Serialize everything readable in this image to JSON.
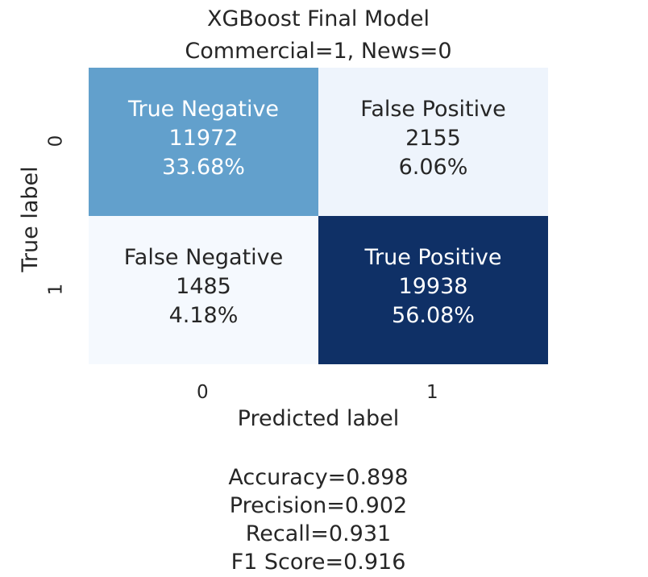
{
  "chart_data": {
    "type": "heatmap",
    "title": "XGBoost Final Model",
    "subtitle": "Commercial=1, News=0",
    "xlabel": "Predicted label",
    "ylabel": "True label",
    "x_tick_labels": [
      "0",
      "1"
    ],
    "y_tick_labels": [
      "0",
      "1"
    ],
    "colormap": "Blues",
    "matrix": [
      [
        11972,
        2155
      ],
      [
        1485,
        19938
      ]
    ],
    "cells": [
      {
        "row": 0,
        "col": 0,
        "name": "True Negative",
        "count": "11972",
        "percent": "33.68%",
        "color": "#62a0cc",
        "text_color": "#ffffff"
      },
      {
        "row": 0,
        "col": 1,
        "name": "False Positive",
        "count": "2155",
        "percent": "6.06%",
        "color": "#eef4fc",
        "text_color": "#262626"
      },
      {
        "row": 1,
        "col": 0,
        "name": "False Negative",
        "count": "1485",
        "percent": "4.18%",
        "color": "#f5f9fe",
        "text_color": "#262626"
      },
      {
        "row": 1,
        "col": 1,
        "name": "True Positive",
        "count": "19938",
        "percent": "56.08%",
        "color": "#0f3066",
        "text_color": "#ffffff"
      }
    ],
    "metrics": [
      "Accuracy=0.898",
      "Precision=0.902",
      "Recall=0.931",
      "F1 Score=0.916"
    ]
  }
}
